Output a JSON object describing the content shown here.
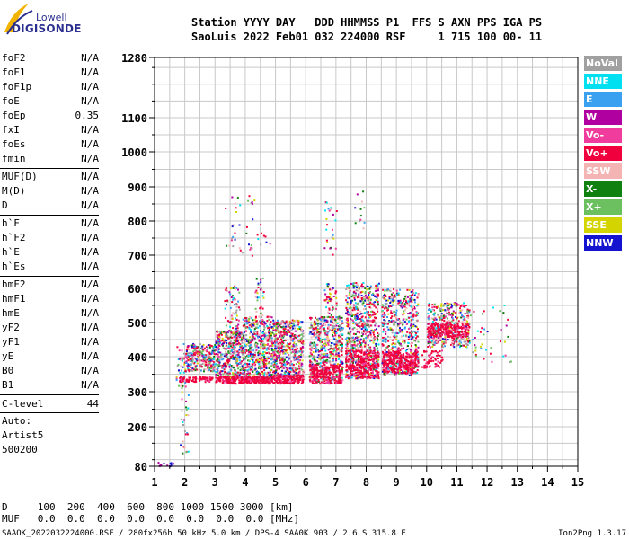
{
  "logo": {
    "top": "Lowell",
    "bottom": "DIGISONDE"
  },
  "header": {
    "line1": "Station YYYY DAY   DDD HHMMSS P1  FFS S AXN PPS IGA PS",
    "line2": "SaoLuis 2022 Feb01 032 224000 RSF     1 715 100 00- 11"
  },
  "params_group1": [
    {
      "name": "foF2",
      "value": "N/A"
    },
    {
      "name": "foF1",
      "value": "N/A"
    },
    {
      "name": "foF1p",
      "value": "N/A"
    },
    {
      "name": "foE",
      "value": "N/A"
    },
    {
      "name": "foEp",
      "value": "0.35"
    },
    {
      "name": "fxI",
      "value": "N/A"
    },
    {
      "name": "foEs",
      "value": "N/A"
    },
    {
      "name": "fmin",
      "value": "N/A"
    }
  ],
  "params_group2": [
    {
      "name": "MUF(D)",
      "value": "N/A"
    },
    {
      "name": "M(D)",
      "value": "N/A"
    },
    {
      "name": "D",
      "value": "N/A"
    }
  ],
  "params_group3": [
    {
      "name": "h`F",
      "value": "N/A"
    },
    {
      "name": "h`F2",
      "value": "N/A"
    },
    {
      "name": "h`E",
      "value": "N/A"
    },
    {
      "name": "h`Es",
      "value": "N/A"
    }
  ],
  "params_group4": [
    {
      "name": "hmF2",
      "value": "N/A"
    },
    {
      "name": "hmF1",
      "value": "N/A"
    },
    {
      "name": "hmE",
      "value": "N/A"
    },
    {
      "name": "yF2",
      "value": "N/A"
    },
    {
      "name": "yF1",
      "value": "N/A"
    },
    {
      "name": "yE",
      "value": "N/A"
    },
    {
      "name": "B0",
      "value": "N/A"
    },
    {
      "name": "B1",
      "value": "N/A"
    }
  ],
  "clevel": {
    "name": "C-level",
    "value": "44"
  },
  "auto": {
    "line1": "Auto:",
    "line2": "Artist5",
    "line3": "500200"
  },
  "legend": [
    {
      "label": "NoVal",
      "color": "#a0a0a0"
    },
    {
      "label": "NNE",
      "color": "#00e0f0"
    },
    {
      "label": "E",
      "color": "#3aa0f0"
    },
    {
      "label": "W",
      "color": "#b000a0"
    },
    {
      "label": "Vo-",
      "color": "#f03c9c"
    },
    {
      "label": "Vo+",
      "color": "#f0003c"
    },
    {
      "label": "SSW",
      "color": "#f4b4b4"
    },
    {
      "label": "X-",
      "color": "#108010"
    },
    {
      "label": "X+",
      "color": "#6cc060"
    },
    {
      "label": "SSE",
      "color": "#d4d400"
    },
    {
      "label": "NNW",
      "color": "#1414d0"
    }
  ],
  "bottom": {
    "d_line": "D     100  200  400  600  800 1000 1500 3000 [km]",
    "muf_line": "MUF   0.0  0.0  0.0  0.0  0.0  0.0  0.0  0.0 [MHz]",
    "footer_left": "SAAOK_2022032224000.RSF / 280fx256h 50 kHz 5.0 km / DPS-4 SAA0K 903 / 2.6 S 315.8 E",
    "footer_right": "Ion2Png 1.3.17"
  },
  "chart_data": {
    "type": "scatter",
    "xlim": [
      1,
      15
    ],
    "ylim": [
      80,
      1280
    ],
    "xticks": [
      1,
      2,
      3,
      4,
      5,
      6,
      7,
      8,
      9,
      10,
      11,
      12,
      13,
      14,
      15
    ],
    "yticks": [
      80,
      200,
      300,
      400,
      500,
      600,
      700,
      800,
      900,
      1000,
      1100,
      1280
    ],
    "grid": true,
    "series": [
      {
        "ranges": [
          {
            "x": [
              1.0,
              1.6
            ],
            "y": [
              80,
              95
            ],
            "n": 12,
            "kind": "low"
          },
          {
            "x": [
              1.7,
              2.0
            ],
            "y": [
              300,
              440
            ],
            "n": 40,
            "kind": "mix"
          },
          {
            "x": [
              1.8,
              2.1
            ],
            "y": [
              120,
              340
            ],
            "n": 30,
            "kind": "mix"
          },
          {
            "x": [
              1.8,
              2.9
            ],
            "y": [
              330,
              345
            ],
            "n": 80,
            "kind": "red"
          },
          {
            "x": [
              2.0,
              3.0
            ],
            "y": [
              360,
              440
            ],
            "n": 260,
            "kind": "mix"
          },
          {
            "x": [
              3.0,
              3.9
            ],
            "y": [
              340,
              480
            ],
            "n": 420,
            "kind": "mix"
          },
          {
            "x": [
              3.0,
              3.9
            ],
            "y": [
              325,
              345
            ],
            "n": 120,
            "kind": "red"
          },
          {
            "x": [
              3.3,
              3.8
            ],
            "y": [
              480,
              610
            ],
            "n": 60,
            "kind": "mix"
          },
          {
            "x": [
              3.3,
              4.8
            ],
            "y": [
              700,
              880
            ],
            "n": 45,
            "kind": "sparse"
          },
          {
            "x": [
              3.9,
              4.9
            ],
            "y": [
              340,
              520
            ],
            "n": 500,
            "kind": "mix"
          },
          {
            "x": [
              3.9,
              4.9
            ],
            "y": [
              325,
              345
            ],
            "n": 160,
            "kind": "red"
          },
          {
            "x": [
              4.3,
              4.6
            ],
            "y": [
              520,
              640
            ],
            "n": 30,
            "kind": "mix"
          },
          {
            "x": [
              4.9,
              5.9
            ],
            "y": [
              340,
              510
            ],
            "n": 520,
            "kind": "mix"
          },
          {
            "x": [
              4.9,
              5.9
            ],
            "y": [
              325,
              350
            ],
            "n": 180,
            "kind": "red"
          },
          {
            "x": [
              6.1,
              7.2
            ],
            "y": [
              330,
              520
            ],
            "n": 560,
            "kind": "mix"
          },
          {
            "x": [
              6.1,
              7.2
            ],
            "y": [
              325,
              380
            ],
            "n": 240,
            "kind": "red"
          },
          {
            "x": [
              6.6,
              7.0
            ],
            "y": [
              520,
              620
            ],
            "n": 50,
            "kind": "mix"
          },
          {
            "x": [
              6.6,
              7.0
            ],
            "y": [
              700,
              860
            ],
            "n": 25,
            "kind": "sparse"
          },
          {
            "x": [
              7.3,
              8.4
            ],
            "y": [
              340,
              620
            ],
            "n": 620,
            "kind": "mix"
          },
          {
            "x": [
              7.3,
              8.4
            ],
            "y": [
              340,
              420
            ],
            "n": 300,
            "kind": "red"
          },
          {
            "x": [
              7.6,
              8.0
            ],
            "y": [
              780,
              890
            ],
            "n": 12,
            "kind": "sparse"
          },
          {
            "x": [
              8.5,
              9.7
            ],
            "y": [
              350,
              600
            ],
            "n": 560,
            "kind": "mix"
          },
          {
            "x": [
              8.5,
              9.7
            ],
            "y": [
              355,
              420
            ],
            "n": 280,
            "kind": "red"
          },
          {
            "x": [
              9.8,
              10.5
            ],
            "y": [
              370,
              420
            ],
            "n": 60,
            "kind": "red"
          },
          {
            "x": [
              10.0,
              11.4
            ],
            "y": [
              430,
              560
            ],
            "n": 380,
            "kind": "mix"
          },
          {
            "x": [
              10.0,
              11.4
            ],
            "y": [
              460,
              500
            ],
            "n": 200,
            "kind": "red"
          },
          {
            "x": [
              11.4,
              12.8
            ],
            "y": [
              380,
              560
            ],
            "n": 40,
            "kind": "sparse"
          }
        ]
      }
    ]
  }
}
